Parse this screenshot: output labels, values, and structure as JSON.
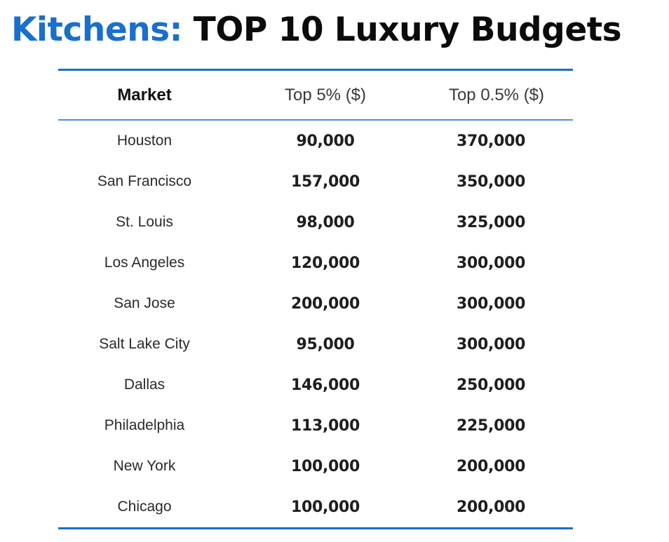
{
  "title": {
    "accent": "Kitchens:",
    "main": " TOP 10 Luxury Budgets",
    "accent_color": "#1a6fcc"
  },
  "table": {
    "headers": [
      "Market",
      "Top 5% ($)",
      "Top 0.5% ($)"
    ],
    "rows": [
      {
        "market": "Houston",
        "top5": "90,000",
        "top05": "370,000"
      },
      {
        "market": "San Francisco",
        "top5": "157,000",
        "top05": "350,000"
      },
      {
        "market": "St. Louis",
        "top5": "98,000",
        "top05": "325,000"
      },
      {
        "market": "Los Angeles",
        "top5": "120,000",
        "top05": "300,000"
      },
      {
        "market": "San Jose",
        "top5": "200,000",
        "top05": "300,000"
      },
      {
        "market": "Salt Lake City",
        "top5": "95,000",
        "top05": "300,000"
      },
      {
        "market": "Dallas",
        "top5": "146,000",
        "top05": "250,000"
      },
      {
        "market": "Philadelphia",
        "top5": "113,000",
        "top05": "225,000"
      },
      {
        "market": "New York",
        "top5": "100,000",
        "top05": "200,000"
      },
      {
        "market": "Chicago",
        "top5": "100,000",
        "top05": "200,000"
      }
    ]
  }
}
